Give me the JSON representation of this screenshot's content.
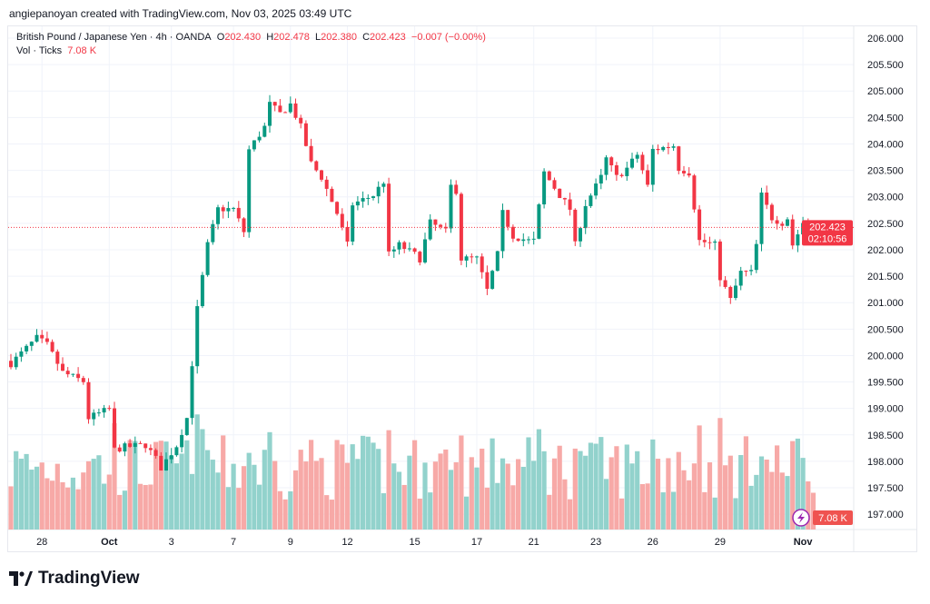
{
  "credit": "angiepanoyan created with TradingView.com, Nov 03, 2025 03:49 UTC",
  "legend": {
    "symbol": "British Pound / Japanese Yen · 4h · OANDA",
    "o_label": "O",
    "o": "202.430",
    "h_label": "H",
    "h": "202.478",
    "l_label": "L",
    "l": "202.380",
    "c_label": "C",
    "c": "202.423",
    "change": "−0.007 (−0.00%)",
    "vol_label": "Vol · Ticks",
    "vol": "7.08 K"
  },
  "price_badge": {
    "price": "202.423",
    "countdown": "02:10:56"
  },
  "vol_badge": "7.08 K",
  "logo_text": "TradingView",
  "colors": {
    "up": "#089981",
    "down": "#f23645",
    "vol_up": "#92d2cc",
    "vol_down": "#f7a9a7",
    "grid": "#f0f3fa"
  },
  "chart_data": {
    "type": "candlestick",
    "title": "British Pound / Japanese Yen · 4h · OANDA",
    "ylim": [
      197.0,
      206.0
    ],
    "y_ticks": [
      "206.000",
      "205.500",
      "205.000",
      "204.500",
      "204.000",
      "203.500",
      "203.000",
      "202.500",
      "202.000",
      "201.500",
      "201.000",
      "200.500",
      "200.000",
      "199.500",
      "199.000",
      "198.500",
      "198.000",
      "197.500",
      "197.000"
    ],
    "x_ticks": [
      {
        "label": "28",
        "i": 6
      },
      {
        "label": "Oct",
        "i": 19,
        "bold": true
      },
      {
        "label": "3",
        "i": 31
      },
      {
        "label": "7",
        "i": 43
      },
      {
        "label": "9",
        "i": 54
      },
      {
        "label": "12",
        "i": 65
      },
      {
        "label": "15",
        "i": 78
      },
      {
        "label": "17",
        "i": 90
      },
      {
        "label": "21",
        "i": 101
      },
      {
        "label": "23",
        "i": 113
      },
      {
        "label": "26",
        "i": 124
      },
      {
        "label": "29",
        "i": 137
      },
      {
        "label": "Nov",
        "i": 153,
        "bold": true
      }
    ],
    "close_keypoints": [
      [
        0,
        199.85
      ],
      [
        5,
        200.33
      ],
      [
        7,
        200.2
      ],
      [
        10,
        199.68
      ],
      [
        14,
        199.51
      ],
      [
        15,
        198.82
      ],
      [
        19,
        198.99
      ],
      [
        20,
        198.22
      ],
      [
        22,
        198.27
      ],
      [
        26,
        198.31
      ],
      [
        28,
        198.05
      ],
      [
        29,
        197.88
      ],
      [
        32,
        198.3
      ],
      [
        34,
        198.82
      ],
      [
        36,
        200.88
      ],
      [
        38,
        202.09
      ],
      [
        40,
        202.77
      ],
      [
        43,
        202.77
      ],
      [
        45,
        202.34
      ],
      [
        46,
        203.89
      ],
      [
        49,
        204.32
      ],
      [
        50,
        204.75
      ],
      [
        52,
        204.57
      ],
      [
        54,
        204.75
      ],
      [
        56,
        204.32
      ],
      [
        58,
        203.63
      ],
      [
        60,
        203.37
      ],
      [
        63,
        202.69
      ],
      [
        65,
        202.09
      ],
      [
        66,
        202.86
      ],
      [
        70,
        203.03
      ],
      [
        72,
        203.29
      ],
      [
        73,
        201.91
      ],
      [
        75,
        202.09
      ],
      [
        78,
        201.91
      ],
      [
        79,
        201.83
      ],
      [
        81,
        202.51
      ],
      [
        84,
        202.34
      ],
      [
        85,
        203.2
      ],
      [
        86,
        203.12
      ],
      [
        87,
        201.83
      ],
      [
        90,
        201.83
      ],
      [
        92,
        201.23
      ],
      [
        94,
        201.91
      ],
      [
        95,
        202.69
      ],
      [
        97,
        202.26
      ],
      [
        100,
        202.17
      ],
      [
        101,
        202.17
      ],
      [
        103,
        203.46
      ],
      [
        106,
        203.03
      ],
      [
        108,
        202.77
      ],
      [
        109,
        202.09
      ],
      [
        111,
        202.86
      ],
      [
        114,
        203.37
      ],
      [
        115,
        203.72
      ],
      [
        117,
        203.37
      ],
      [
        119,
        203.54
      ],
      [
        121,
        203.8
      ],
      [
        123,
        203.2
      ],
      [
        124,
        203.89
      ],
      [
        128,
        203.97
      ],
      [
        129,
        203.54
      ],
      [
        131,
        203.46
      ],
      [
        133,
        202.17
      ],
      [
        136,
        202.09
      ],
      [
        137,
        201.48
      ],
      [
        139,
        201.05
      ],
      [
        141,
        201.57
      ],
      [
        143,
        201.57
      ],
      [
        144,
        202.09
      ],
      [
        145,
        203.03
      ],
      [
        147,
        202.6
      ],
      [
        149,
        202.51
      ],
      [
        150,
        202.6
      ],
      [
        151,
        202.09
      ],
      [
        153,
        202.51
      ],
      [
        155,
        202.423
      ]
    ],
    "last_candle": {
      "open": 202.43,
      "high": 202.478,
      "low": 202.38,
      "close": 202.423
    },
    "last_volume": "7.08 K",
    "current_price": 202.423
  }
}
